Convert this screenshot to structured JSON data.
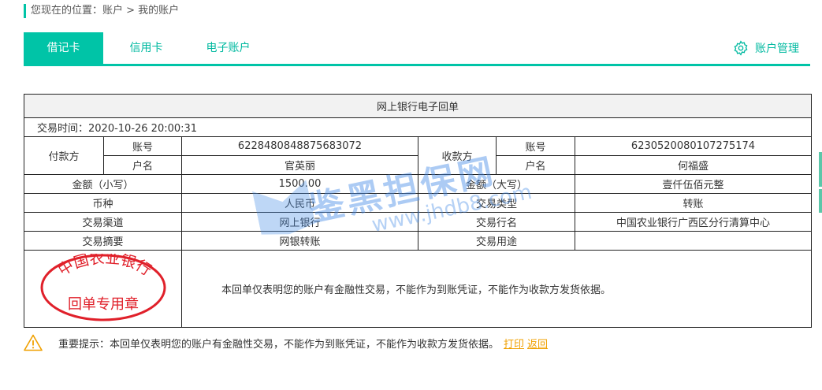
{
  "breadcrumb": "您现在的位置：账户 > 我的账户",
  "tabs": [
    {
      "label": "借记卡",
      "active": true
    },
    {
      "label": "信用卡"
    },
    {
      "label": "电子账户"
    }
  ],
  "account_manage": {
    "label": "账户管理",
    "icon": "gear-icon"
  },
  "receipt": {
    "title": "网上银行电子回单",
    "time": "交易时间：2020-10-26 20:00:31",
    "payer": {
      "label": "付款方",
      "account_label": "账号",
      "account": "6228480848875683072",
      "name_label": "户名",
      "name": "官英丽"
    },
    "payee": {
      "label": "收款方",
      "account_label": "账号",
      "account": "6230520080107275174",
      "name_label": "户名",
      "name": "何福盛"
    },
    "rows": [
      {
        "l1": "金额（小写）",
        "v1": "1500.00",
        "l2": "金额（大写）",
        "v2": "壹仟伍佰元整"
      },
      {
        "l1": "币种",
        "v1": "人民币",
        "l2": "交易类型",
        "v2": "转账"
      },
      {
        "l1": "交易渠道",
        "v1": "网上银行",
        "l2": "交易行名",
        "v2": "中国农业银行广西区分行清算中心"
      },
      {
        "l1": "交易摘要",
        "v1": "网银转账",
        "l2": "交易用途",
        "v2": ""
      }
    ],
    "stamp": {
      "top": "中国农业银行",
      "bottom": "回单专用章",
      "color": "#e0202a"
    },
    "note": "本回单仅表明您的账户有金融性交易，不能作为到账凭证，不能作为收款方发货依据。"
  },
  "watermark": {
    "text": "鉴黑担保网",
    "url": "www.jhdb8.com"
  },
  "tip": {
    "text": "重要提示：本回单仅表明您的账户有金融性交易，不能作为到账凭证，不能作为收款方发货依据。",
    "print": "打印",
    "back": "返回"
  },
  "colors": {
    "accent": "#00c4a7",
    "link": "#f0a000"
  }
}
